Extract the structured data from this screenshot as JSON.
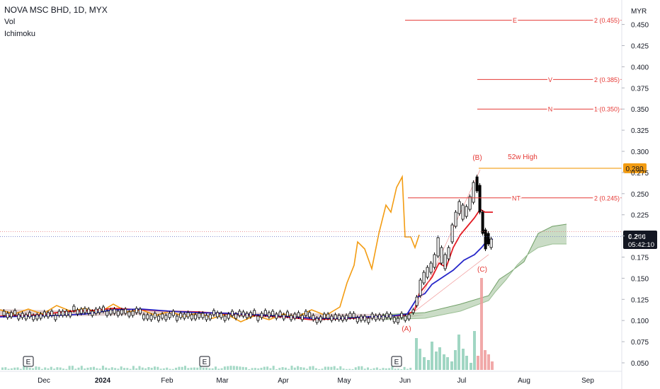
{
  "header": {
    "symbol_line": "NOVA MSC BHD, 1D, MYX",
    "indicators": [
      "Vol",
      "Ichimoku"
    ],
    "currency": "MYR"
  },
  "badges": {
    "high_price": "0.280",
    "last_price": "0.200",
    "countdown": "05:42:10"
  },
  "colors": {
    "background": "#ffffff",
    "target_line": "#e53935",
    "high_line": "#f39c12",
    "tenkan": "#e31b23",
    "kijun": "#2626c9",
    "chikou": "#f39c12",
    "cloud_bull": "#a7c4a0",
    "cloud_bear": "#c9a7a7",
    "volume": "#8fcfb8",
    "volume_spike": "#ef9a9a",
    "last_price_bg": "#131722"
  },
  "chart_data": {
    "type": "candlestick",
    "ylim": [
      0.04,
      0.47
    ],
    "y_ticks": [
      "0.450",
      "0.425",
      "0.400",
      "0.375",
      "0.350",
      "0.325",
      "0.300",
      "0.275",
      "0.250",
      "0.225",
      "0.200",
      "0.175",
      "0.150",
      "0.125",
      "0.100",
      "0.075",
      "0.050"
    ],
    "x_labels": [
      "Dec",
      "2024",
      "Feb",
      "Mar",
      "Apr",
      "May",
      "Jun",
      "Jul",
      "Aug",
      "Sep"
    ],
    "targets": [
      {
        "label": "E",
        "value_label": "2 (0.455)",
        "value": 0.455
      },
      {
        "label": "V",
        "value_label": "2 (0.385)",
        "value": 0.385
      },
      {
        "label": "N",
        "value_label": "1 (0.350)",
        "value": 0.35
      },
      {
        "label": "NT",
        "value_label": "2 (0.245)",
        "value": 0.245
      }
    ],
    "annotations": [
      "(A)",
      "(B)",
      "(C)",
      "52w High"
    ],
    "earnings_markers": [
      "E",
      "E",
      "E"
    ],
    "key_points": {
      "A": {
        "date": "2024-06-01",
        "price": 0.105
      },
      "B": {
        "date": "2024-07-08",
        "price": 0.28
      },
      "C": {
        "date": "2024-07-12",
        "price": 0.175
      }
    },
    "fifty_two_week_high": 0.28,
    "last_close": 0.2,
    "tenkan_last": 0.228,
    "kijun_last": 0.192
  }
}
